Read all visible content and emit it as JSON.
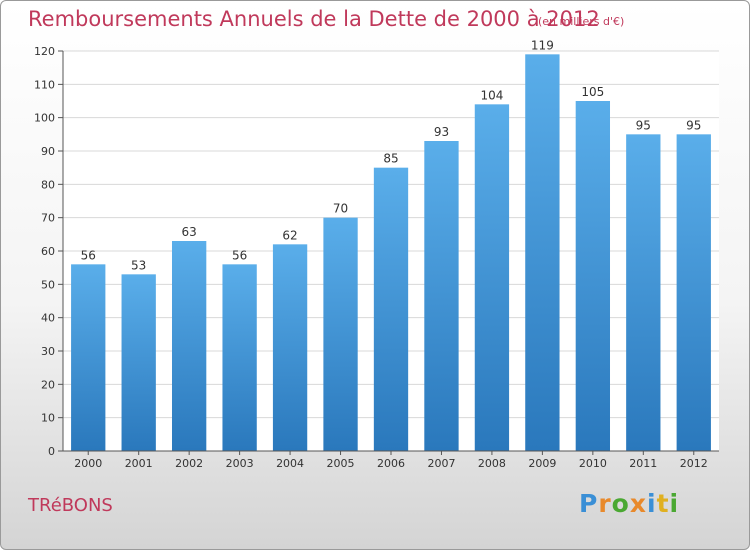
{
  "chart_data": {
    "type": "bar",
    "title": "Remboursements Annuels de la Dette de 2000 à 2012",
    "subtitle": "(en milliers d'€)",
    "categories": [
      "2000",
      "2001",
      "2002",
      "2003",
      "2004",
      "2005",
      "2006",
      "2007",
      "2008",
      "2009",
      "2010",
      "2011",
      "2012"
    ],
    "values": [
      56,
      53,
      63,
      56,
      62,
      70,
      85,
      93,
      104,
      119,
      105,
      95,
      95
    ],
    "ylim": [
      0,
      120
    ],
    "yticks": [
      0,
      10,
      20,
      30,
      40,
      50,
      60,
      70,
      80,
      90,
      100,
      110,
      120
    ],
    "grid": true,
    "bar_color": "#4f9fe0"
  },
  "commune": "TRéBONS",
  "logo": {
    "letters": [
      "P",
      "r",
      "o",
      "x",
      "i",
      "t",
      "i"
    ],
    "colors": [
      "#3a8fd6",
      "#e8892b",
      "#4aa832",
      "#e8892b",
      "#3a8fd6",
      "#e0b020",
      "#4aa832"
    ]
  }
}
